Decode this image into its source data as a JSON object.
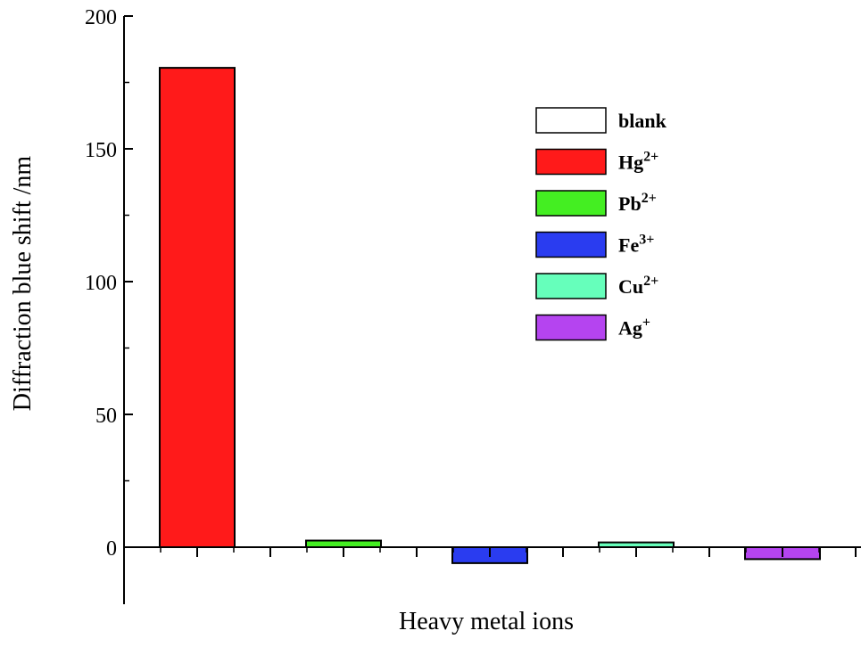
{
  "chart_data": {
    "type": "bar",
    "title": "",
    "xlabel": "Heavy metal ions",
    "ylabel": "Diffraction blue shift /nm",
    "ylim": [
      -20,
      200
    ],
    "yticks": [
      0,
      50,
      100,
      150,
      200
    ],
    "grid": false,
    "legend_position": "top-right",
    "series": [
      {
        "name": "blank",
        "value": 0,
        "color": "#ffffff",
        "base": "blank",
        "sup": ""
      },
      {
        "name": "Hg2+",
        "value": 180.5,
        "color": "#ff1a1a",
        "base": "Hg",
        "sup": "2+"
      },
      {
        "name": "Pb2+",
        "value": 2.5,
        "color": "#44ee22",
        "base": "Pb",
        "sup": "2+"
      },
      {
        "name": "Fe3+",
        "value": -6,
        "color": "#2a3cf0",
        "base": "Fe",
        "sup": "3+"
      },
      {
        "name": "Cu2+",
        "value": 1.8,
        "color": "#66ffbb",
        "base": "Cu",
        "sup": "2+"
      },
      {
        "name": "Ag+",
        "value": -4.5,
        "color": "#b544f0",
        "base": "Ag",
        "sup": "+"
      }
    ]
  }
}
